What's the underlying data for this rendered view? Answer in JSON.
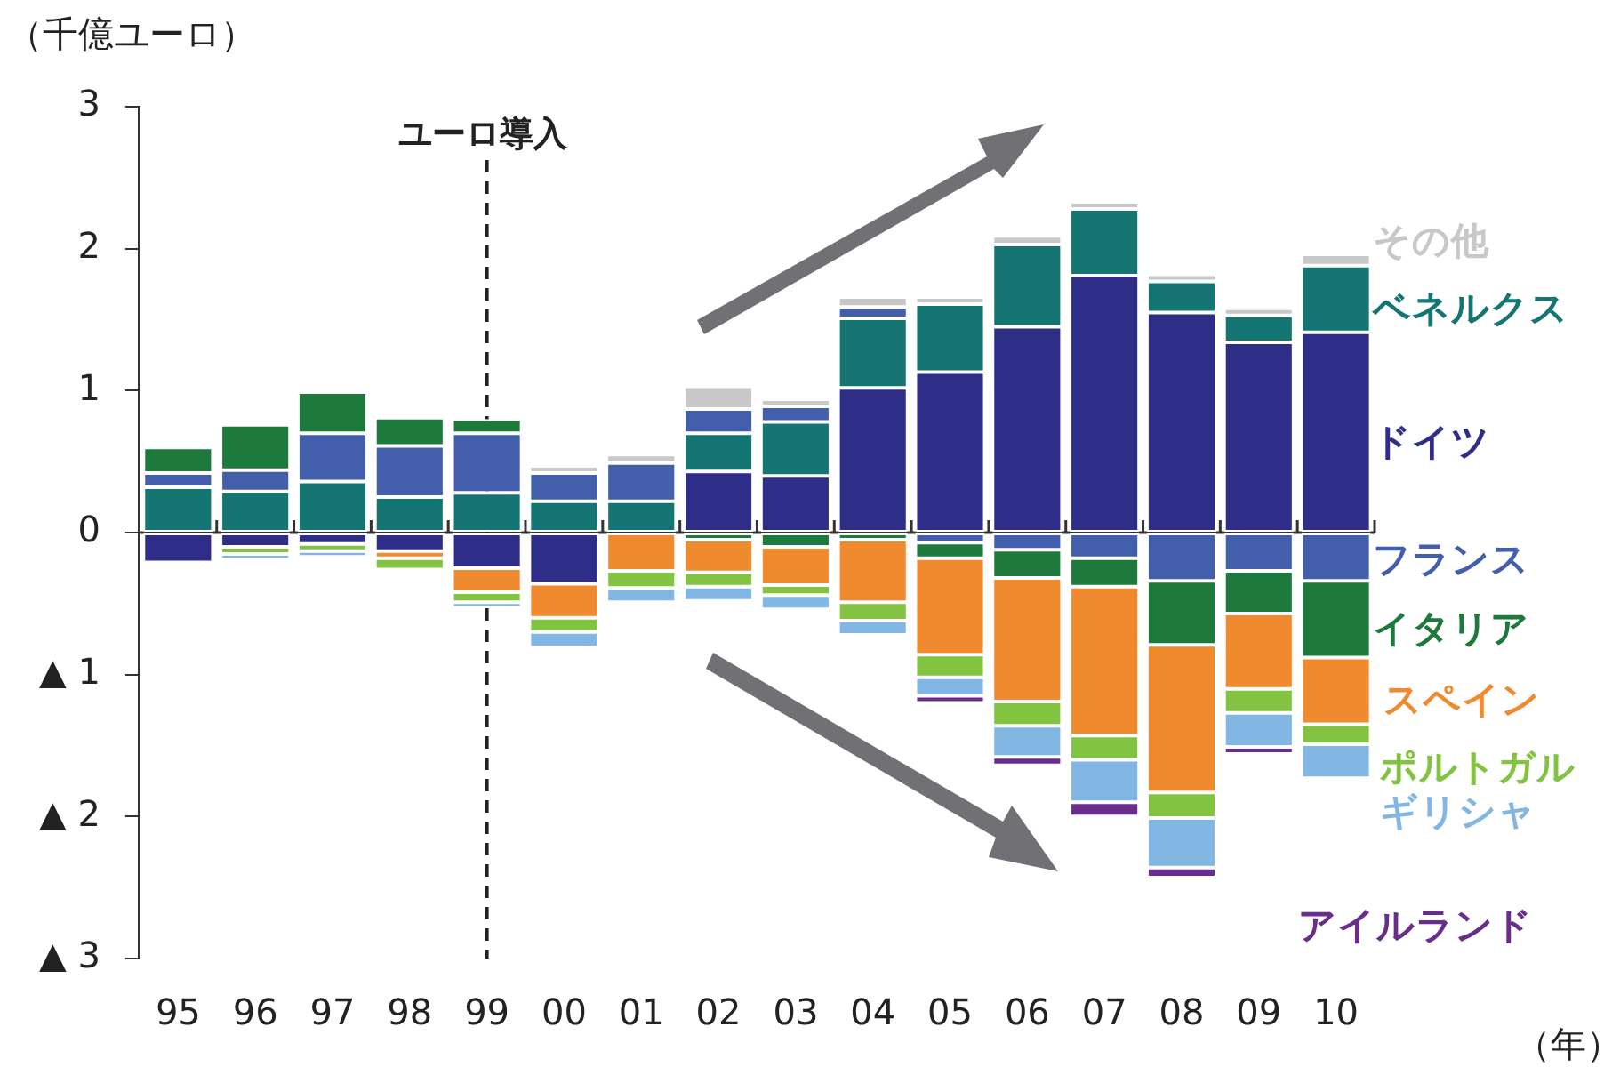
{
  "chart_data": {
    "type": "bar",
    "stacked": true,
    "xlabel": "（年）",
    "ylabel": "（千億ユーロ）",
    "categories": [
      "95",
      "96",
      "97",
      "98",
      "99",
      "00",
      "01",
      "02",
      "03",
      "04",
      "05",
      "06",
      "07",
      "08",
      "09",
      "10"
    ],
    "ylim": [
      -3,
      3
    ],
    "yticks": [
      {
        "value": -3,
        "label": "▲ 3"
      },
      {
        "value": -2,
        "label": "▲ 2"
      },
      {
        "value": -1,
        "label": "▲ 1"
      },
      0,
      1,
      2,
      3
    ],
    "grid": false,
    "legend": "right",
    "ref_lines": [
      {
        "axis": "x",
        "value": "99",
        "label": "ユーロ導入",
        "line_style": "dashed",
        "color": "#222222"
      }
    ],
    "series": [
      {
        "name": "ドイツ",
        "color": "#2e2d88",
        "values": [
          -0.21,
          -0.1,
          -0.08,
          -0.13,
          -0.25,
          -0.36,
          null,
          0.43,
          0.4,
          1.02,
          1.13,
          1.45,
          1.81,
          1.55,
          1.34,
          1.41
        ]
      },
      {
        "name": "ベネルクス",
        "color": "#157572",
        "values": [
          0.32,
          0.29,
          0.36,
          0.25,
          0.28,
          0.22,
          0.22,
          0.27,
          0.38,
          0.49,
          0.48,
          0.58,
          0.47,
          0.22,
          0.19,
          0.47
        ]
      },
      {
        "name": "フランス",
        "color": "#435eab",
        "values": [
          0.1,
          0.15,
          0.34,
          0.36,
          0.42,
          0.2,
          0.27,
          0.17,
          0.11,
          0.08,
          -0.07,
          -0.12,
          -0.18,
          -0.34,
          -0.27,
          -0.34
        ]
      },
      {
        "name": "イタリア",
        "color": "#1e7a3c",
        "values": [
          0.18,
          0.32,
          0.29,
          0.2,
          0.1,
          null,
          null,
          -0.05,
          -0.1,
          -0.05,
          -0.11,
          -0.2,
          -0.2,
          -0.45,
          -0.3,
          -0.54
        ]
      },
      {
        "name": "スペイン",
        "color": "#f08a2e",
        "values": [
          null,
          null,
          null,
          -0.05,
          -0.17,
          -0.24,
          -0.27,
          -0.23,
          -0.27,
          -0.44,
          -0.68,
          -0.87,
          -1.05,
          -1.04,
          -0.53,
          -0.47
        ]
      },
      {
        "name": "ポルトガル",
        "color": "#82c341",
        "values": [
          null,
          -0.05,
          -0.05,
          -0.08,
          -0.07,
          -0.1,
          -0.12,
          -0.1,
          -0.07,
          -0.13,
          -0.16,
          -0.17,
          -0.17,
          -0.18,
          -0.17,
          -0.14
        ]
      },
      {
        "name": "ギリシャ",
        "color": "#82b6e3",
        "values": [
          null,
          -0.04,
          -0.04,
          null,
          -0.04,
          -0.11,
          -0.1,
          -0.1,
          -0.1,
          -0.1,
          -0.13,
          -0.22,
          -0.3,
          -0.35,
          -0.24,
          -0.24
        ]
      },
      {
        "name": "アイルランド",
        "color": "#6a2d8c",
        "values": [
          null,
          null,
          null,
          null,
          null,
          null,
          null,
          null,
          null,
          null,
          -0.05,
          -0.06,
          -0.1,
          -0.07,
          -0.05,
          null
        ]
      },
      {
        "name": "その他",
        "color": "#c8c8c8",
        "values": [
          null,
          null,
          null,
          null,
          null,
          0.05,
          0.06,
          0.16,
          0.05,
          0.07,
          0.05,
          0.06,
          0.05,
          0.05,
          0.05,
          0.08
        ]
      }
    ]
  }
}
